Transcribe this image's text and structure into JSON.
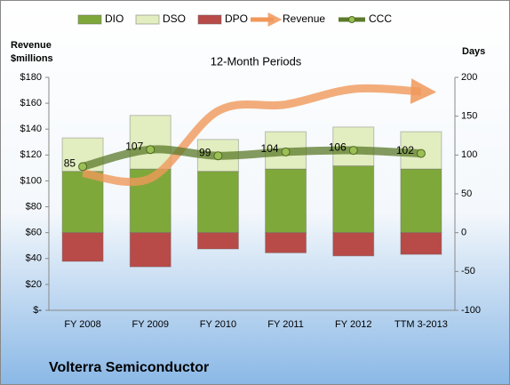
{
  "chart_data": {
    "type": "combo",
    "title": "12-Month Periods",
    "company": "Volterra Semiconductor",
    "y_label": "Revenue $millions",
    "y2_label": "Days",
    "categories": [
      "FY 2008",
      "FY 2009",
      "FY 2010",
      "FY 2011",
      "FY 2012",
      "TTM 3-2013"
    ],
    "series": [
      {
        "name": "DIO",
        "type": "bar",
        "axis": "y2",
        "color": "#7fa83a",
        "values": [
          79,
          82,
          79,
          82,
          86,
          82
        ]
      },
      {
        "name": "DSO",
        "type": "bar",
        "axis": "y2",
        "color": "#e2edc0",
        "values": [
          43,
          69,
          41,
          48,
          50,
          48
        ]
      },
      {
        "name": "DPO",
        "type": "bar",
        "axis": "y2",
        "color": "#b84a48",
        "values": [
          -37,
          -44,
          -21,
          -26,
          -30,
          -28
        ]
      },
      {
        "name": "Revenue",
        "type": "arrow",
        "color": "#f0985a",
        "values": [
          106,
          102,
          154,
          159,
          171,
          169
        ]
      },
      {
        "name": "CCC",
        "type": "line",
        "axis": "y2",
        "color": "#5b7a2a",
        "values": [
          85,
          107,
          99,
          104,
          106,
          102
        ]
      }
    ],
    "ylim": [
      0,
      180
    ],
    "yticks": [
      {
        "value": 0,
        "label": "$-"
      },
      {
        "value": 20,
        "label": "$20"
      },
      {
        "value": 40,
        "label": "$40"
      },
      {
        "value": 60,
        "label": "$60"
      },
      {
        "value": 80,
        "label": "$80"
      },
      {
        "value": 100,
        "label": "$100"
      },
      {
        "value": 120,
        "label": "$120"
      },
      {
        "value": 140,
        "label": "$140"
      },
      {
        "value": 160,
        "label": "$160"
      },
      {
        "value": 180,
        "label": "$180"
      }
    ],
    "y2lim": [
      -100,
      200
    ],
    "y2ticks": [
      -100,
      -50,
      0,
      50,
      100,
      150,
      200
    ],
    "legend": "top"
  }
}
